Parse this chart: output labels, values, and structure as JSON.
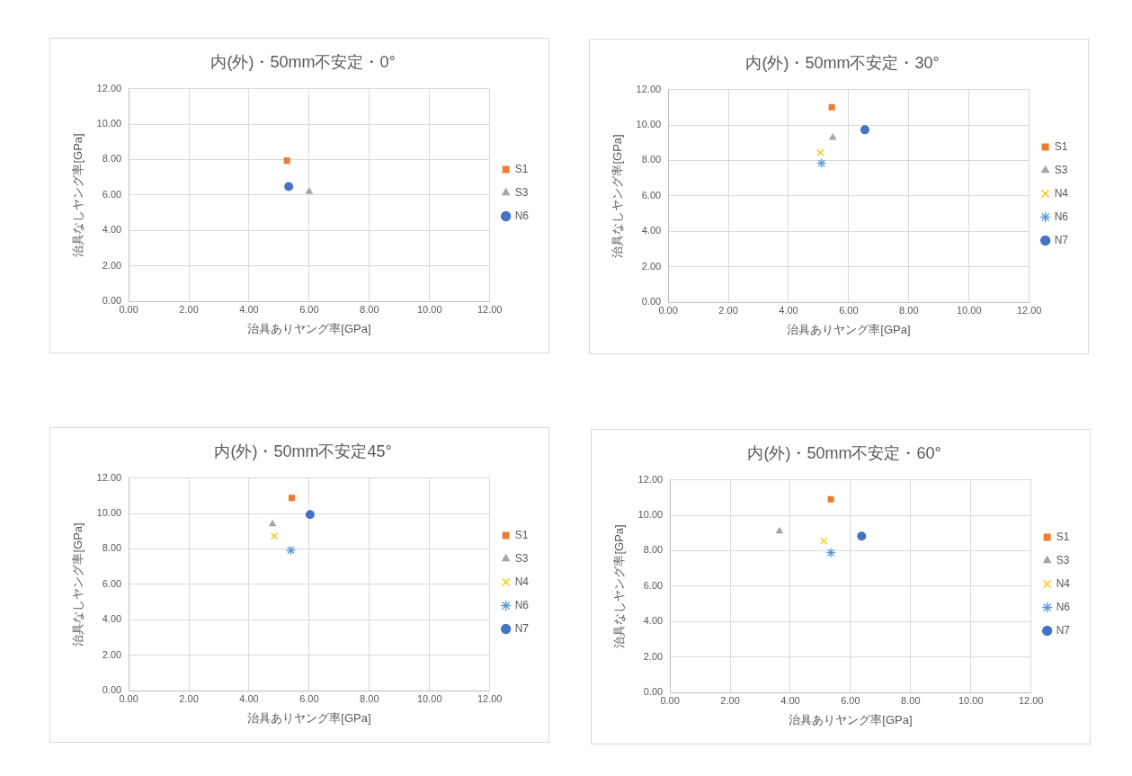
{
  "chart_data": [
    {
      "type": "scatter",
      "title": "内(外)・50mm不安定・0°",
      "xlabel": "治具ありヤング率[GPa]",
      "ylabel": "治具なしヤング率[GPa]",
      "xlim": [
        0,
        12
      ],
      "ylim": [
        0,
        12
      ],
      "xticks": [
        {
          "value": 0,
          "label": "0.00"
        },
        {
          "value": 2,
          "label": "2.00"
        },
        {
          "value": 4,
          "label": "4.00"
        },
        {
          "value": 6,
          "label": "6.00"
        },
        {
          "value": 8,
          "label": "8.00"
        },
        {
          "value": 10,
          "label": "10.00"
        },
        {
          "value": 12,
          "label": "12.00"
        }
      ],
      "yticks": [
        {
          "value": 0,
          "label": "0.00"
        },
        {
          "value": 2,
          "label": "2.00"
        },
        {
          "value": 4,
          "label": "4.00"
        },
        {
          "value": 6,
          "label": "6.00"
        },
        {
          "value": 8,
          "label": "8.00"
        },
        {
          "value": 10,
          "label": "10.00"
        },
        {
          "value": 12,
          "label": "12.00"
        }
      ],
      "grid": true,
      "legend": "right",
      "series": [
        {
          "name": "S1",
          "color": "#ed7d31",
          "marker": "square",
          "x": [
            5.26
          ],
          "values": [
            7.94
          ]
        },
        {
          "name": "S3",
          "color": "#a5a5a5",
          "marker": "triangle",
          "x": [
            6.0
          ],
          "values": [
            6.2
          ]
        },
        {
          "name": "N6",
          "color": "#4472c4",
          "marker": "circle",
          "x": [
            5.32
          ],
          "values": [
            6.48
          ]
        }
      ]
    },
    {
      "type": "scatter",
      "title": "内(外)・50mm不安定・30°",
      "xlabel": "治具ありヤング率[GPa]",
      "ylabel": "治具なしヤング率[GPa]",
      "xlim": [
        0,
        12
      ],
      "ylim": [
        0,
        12
      ],
      "xticks": [
        {
          "value": 0,
          "label": "0.00"
        },
        {
          "value": 2,
          "label": "2.00"
        },
        {
          "value": 4,
          "label": "4.00"
        },
        {
          "value": 6,
          "label": "6.00"
        },
        {
          "value": 8,
          "label": "8.00"
        },
        {
          "value": 10,
          "label": "10.00"
        },
        {
          "value": 12,
          "label": "12.00"
        }
      ],
      "yticks": [
        {
          "value": 0,
          "label": "0.00"
        },
        {
          "value": 2,
          "label": "2.00"
        },
        {
          "value": 4,
          "label": "4.00"
        },
        {
          "value": 6,
          "label": "6.00"
        },
        {
          "value": 8,
          "label": "8.00"
        },
        {
          "value": 10,
          "label": "10.00"
        },
        {
          "value": 12,
          "label": "12.00"
        }
      ],
      "grid": true,
      "legend": "right",
      "series": [
        {
          "name": "S1",
          "color": "#ed7d31",
          "marker": "square",
          "x": [
            5.44
          ],
          "values": [
            11.0
          ]
        },
        {
          "name": "S3",
          "color": "#a5a5a5",
          "marker": "triangle",
          "x": [
            5.47
          ],
          "values": [
            9.29
          ]
        },
        {
          "name": "N4",
          "color": "#ffc000",
          "marker": "cross",
          "x": [
            5.06
          ],
          "values": [
            8.44
          ]
        },
        {
          "name": "N6",
          "color": "#5b9bd5",
          "x": [
            5.1
          ],
          "values": [
            7.85
          ]
        },
        {
          "name": "N7",
          "color": "#4472c4",
          "marker": "circle",
          "x": [
            6.54
          ],
          "values": [
            9.73
          ]
        }
      ]
    },
    {
      "type": "scatter",
      "title": "内(外)・50mm不安定45°",
      "xlabel": "治具ありヤング率[GPa]",
      "ylabel": "治具なしヤング率[GPa]",
      "xlim": [
        0,
        12
      ],
      "ylim": [
        0,
        12
      ],
      "xticks": [
        {
          "value": 0,
          "label": "0.00"
        },
        {
          "value": 2,
          "label": "2.00"
        },
        {
          "value": 4,
          "label": "4.00"
        },
        {
          "value": 6,
          "label": "6.00"
        },
        {
          "value": 8,
          "label": "8.00"
        },
        {
          "value": 10,
          "label": "10.00"
        },
        {
          "value": 12,
          "label": "12.00"
        }
      ],
      "yticks": [
        {
          "value": 0,
          "label": "0.00"
        },
        {
          "value": 2,
          "label": "2.00"
        },
        {
          "value": 4,
          "label": "4.00"
        },
        {
          "value": 6,
          "label": "6.00"
        },
        {
          "value": 8,
          "label": "8.00"
        },
        {
          "value": 10,
          "label": "10.00"
        },
        {
          "value": 12,
          "label": "12.00"
        }
      ],
      "grid": true,
      "legend": "right",
      "series": [
        {
          "name": "S1",
          "color": "#ed7d31",
          "marker": "square",
          "x": [
            5.42
          ],
          "values": [
            10.88
          ]
        },
        {
          "name": "S3",
          "color": "#a5a5a5",
          "marker": "triangle",
          "x": [
            4.78
          ],
          "values": [
            9.41
          ]
        },
        {
          "name": "N4",
          "color": "#ffc000",
          "marker": "cross",
          "x": [
            4.84
          ],
          "values": [
            8.72
          ]
        },
        {
          "name": "N6",
          "color": "#5b9bd5",
          "x": [
            5.39
          ],
          "values": [
            7.92
          ]
        },
        {
          "name": "N7",
          "color": "#4472c4",
          "marker": "circle",
          "x": [
            6.03
          ],
          "values": [
            9.94
          ]
        }
      ]
    },
    {
      "type": "scatter",
      "title": "内(外)・50mm不安定・60°",
      "xlabel": "治具ありヤング率[GPa]",
      "ylabel": "治具なしヤング率[GPa]",
      "xlim": [
        0,
        12
      ],
      "ylim": [
        0,
        12
      ],
      "xticks": [
        {
          "value": 0,
          "label": "0.00"
        },
        {
          "value": 2,
          "label": "2.00"
        },
        {
          "value": 4,
          "label": "4.00"
        },
        {
          "value": 6,
          "label": "6.00"
        },
        {
          "value": 8,
          "label": "8.00"
        },
        {
          "value": 10,
          "label": "10.00"
        },
        {
          "value": 12,
          "label": "12.00"
        }
      ],
      "yticks": [
        {
          "value": 0,
          "label": "0.00"
        },
        {
          "value": 2,
          "label": "2.00"
        },
        {
          "value": 4,
          "label": "4.00"
        },
        {
          "value": 6,
          "label": "6.00"
        },
        {
          "value": 8,
          "label": "8.00"
        },
        {
          "value": 10,
          "label": "10.00"
        },
        {
          "value": 12,
          "label": "12.00"
        }
      ],
      "grid": true,
      "legend": "right",
      "series": [
        {
          "name": "S1",
          "color": "#ed7d31",
          "marker": "square",
          "x": [
            5.35
          ],
          "values": [
            10.9
          ]
        },
        {
          "name": "S3",
          "color": "#a5a5a5",
          "marker": "triangle",
          "x": [
            3.64
          ],
          "values": [
            9.1
          ]
        },
        {
          "name": "N4",
          "color": "#ffc000",
          "marker": "cross",
          "x": [
            5.11
          ],
          "values": [
            8.55
          ]
        },
        {
          "name": "N6",
          "color": "#5b9bd5",
          "x": [
            5.35
          ],
          "values": [
            7.89
          ]
        },
        {
          "name": "N7",
          "color": "#4472c4",
          "marker": "circle",
          "x": [
            6.37
          ],
          "values": [
            8.82
          ]
        }
      ]
    }
  ]
}
